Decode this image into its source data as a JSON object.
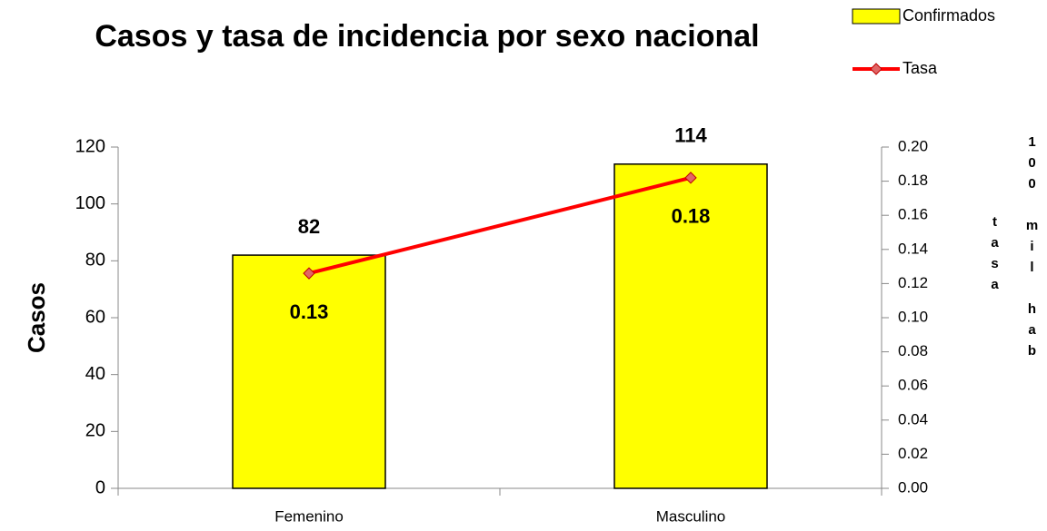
{
  "chart_data": {
    "type": "bar_line",
    "title": "Casos y tasa de incidencia por sexo nacional",
    "ylabel": "Casos",
    "y2label": [
      "tasa",
      "100 mil hab"
    ],
    "categories": [
      "Femenino",
      "Masculino"
    ],
    "series": [
      {
        "name": "Confirmados",
        "type": "bar",
        "color": "#ffff00",
        "values": [
          82,
          114
        ]
      },
      {
        "name": "Tasa",
        "type": "line",
        "axis": "y2",
        "color": "#ff0000",
        "values": [
          0.126,
          0.182
        ],
        "value_labels": [
          "0.13",
          "0.18"
        ]
      }
    ],
    "ylim": [
      0,
      120
    ],
    "yticks": [
      0,
      20,
      40,
      60,
      80,
      100,
      120
    ],
    "y2lim": [
      0,
      0.2
    ],
    "y2ticks": [
      {
        "value": 0,
        "label": "0.00"
      },
      0.02,
      0.04,
      0.06,
      0.08,
      {
        "value": 0.1,
        "label": "0.10"
      },
      0.12,
      0.14,
      0.16,
      0.18,
      {
        "value": 0.2,
        "label": "0.20"
      }
    ],
    "legend": "top-right"
  }
}
